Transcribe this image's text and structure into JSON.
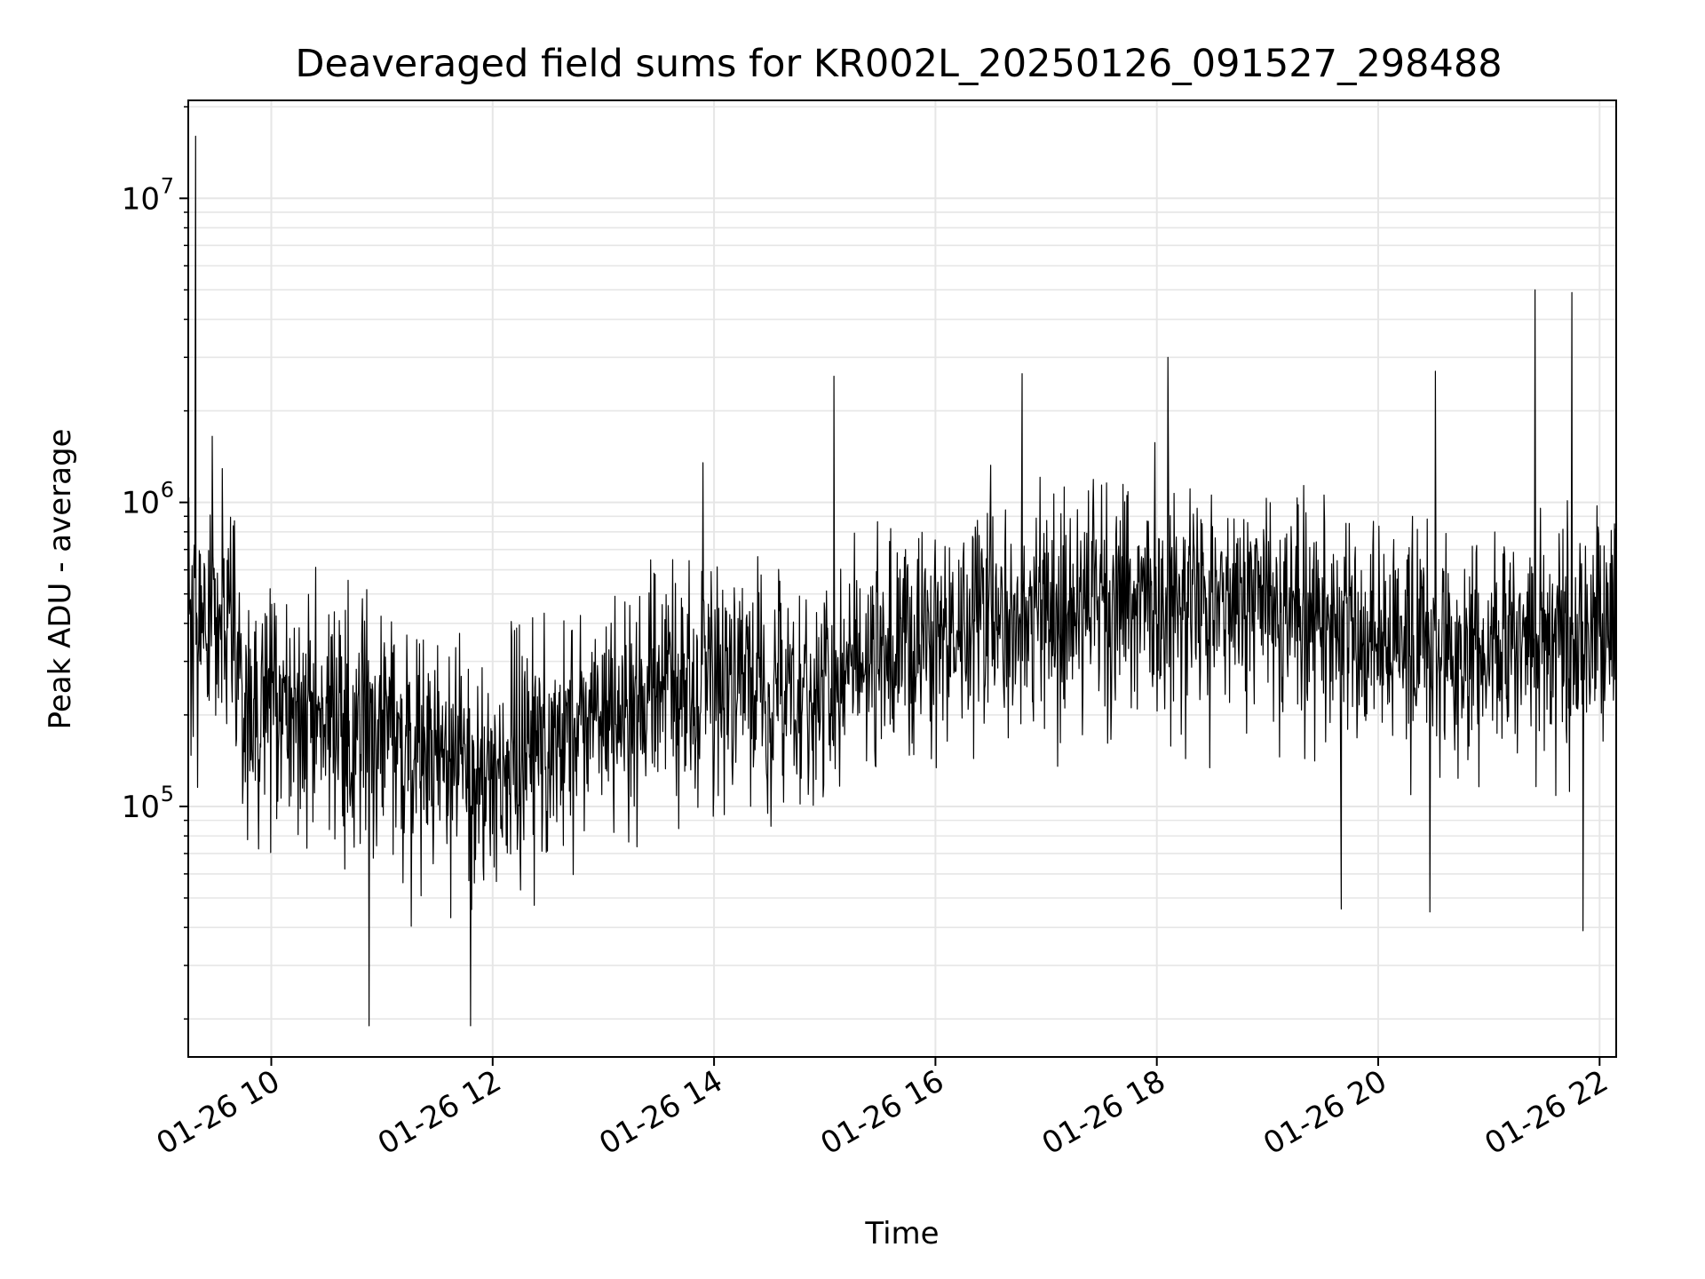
{
  "chart_data": {
    "type": "line",
    "title": "Deaveraged field sums for KR002L_20250126_091527_298488",
    "xlabel": "Time",
    "ylabel": "Peak ADU - average",
    "yscale": "log",
    "grid": true,
    "legend": "none",
    "line_color": "#000000",
    "grid_color": "#e6e6e6",
    "xlim": [
      "2025-01-26T09:15",
      "2025-01-26T22:09"
    ],
    "ylim": [
      15000,
      21000000
    ],
    "x_ticks": [
      {
        "value": "2025-01-26T10:00",
        "label": "01-26 10"
      },
      {
        "value": "2025-01-26T12:00",
        "label": "01-26 12"
      },
      {
        "value": "2025-01-26T14:00",
        "label": "01-26 14"
      },
      {
        "value": "2025-01-26T16:00",
        "label": "01-26 16"
      },
      {
        "value": "2025-01-26T18:00",
        "label": "01-26 18"
      },
      {
        "value": "2025-01-26T20:00",
        "label": "01-26 20"
      },
      {
        "value": "2025-01-26T22:00",
        "label": "01-26 22"
      }
    ],
    "y_ticks": [
      {
        "value": 100000,
        "base": "10",
        "exp": "5"
      },
      {
        "value": 1000000,
        "base": "10",
        "exp": "6"
      },
      {
        "value": 10000000,
        "base": "10",
        "exp": "7"
      }
    ],
    "series": [
      {
        "envelope": [
          {
            "t": "2025-01-26T09:15",
            "median": 350000
          },
          {
            "t": "2025-01-26T09:35",
            "median": 450000
          },
          {
            "t": "2025-01-26T09:45",
            "median": 230000
          },
          {
            "t": "2025-01-26T10:30",
            "median": 190000
          },
          {
            "t": "2025-01-26T11:00",
            "median": 150000
          },
          {
            "t": "2025-01-26T11:45",
            "median": 140000
          },
          {
            "t": "2025-01-26T12:00",
            "median": 130000
          },
          {
            "t": "2025-01-26T12:30",
            "median": 160000
          },
          {
            "t": "2025-01-26T13:00",
            "median": 200000
          },
          {
            "t": "2025-01-26T14:00",
            "median": 240000
          },
          {
            "t": "2025-01-26T14:45",
            "median": 220000
          },
          {
            "t": "2025-01-26T15:00",
            "median": 250000
          },
          {
            "t": "2025-01-26T16:00",
            "median": 380000
          },
          {
            "t": "2025-01-26T17:00",
            "median": 420000
          },
          {
            "t": "2025-01-26T18:00",
            "median": 520000
          },
          {
            "t": "2025-01-26T19:00",
            "median": 450000
          },
          {
            "t": "2025-01-26T20:00",
            "median": 350000
          },
          {
            "t": "2025-01-26T21:00",
            "median": 320000
          },
          {
            "t": "2025-01-26T22:09",
            "median": 380000
          }
        ],
        "spikes": [
          {
            "t": "2025-01-26T09:19",
            "value": 16000000
          },
          {
            "t": "2025-01-26T09:28",
            "value": 1650000
          },
          {
            "t": "2025-01-26T10:53",
            "value": 19000
          },
          {
            "t": "2025-01-26T11:48",
            "value": 19000
          },
          {
            "t": "2025-01-26T13:54",
            "value": 1350000
          },
          {
            "t": "2025-01-26T15:05",
            "value": 2600000
          },
          {
            "t": "2025-01-26T16:47",
            "value": 2650000
          },
          {
            "t": "2025-01-26T18:06",
            "value": 3000000
          },
          {
            "t": "2025-01-26T20:31",
            "value": 2700000
          },
          {
            "t": "2025-01-26T21:25",
            "value": 5000000
          },
          {
            "t": "2025-01-26T21:45",
            "value": 4900000
          },
          {
            "t": "2025-01-26T21:51",
            "value": 39000
          },
          {
            "t": "2025-01-26T19:40",
            "value": 46000
          },
          {
            "t": "2025-01-26T20:28",
            "value": 45000
          }
        ]
      }
    ]
  }
}
